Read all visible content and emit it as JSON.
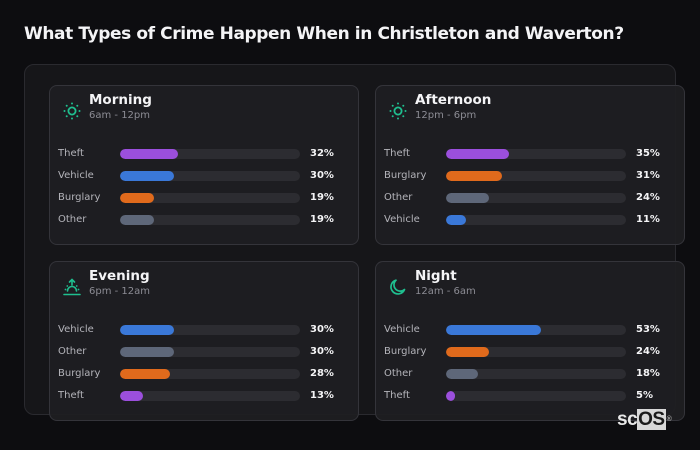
{
  "header": {
    "title": "What Types of Crime Happen When in Christleton and Waverton?"
  },
  "colors": {
    "accent_icon": "#1fbf8f",
    "Theft": "#9b4fdc",
    "Vehicle": "#3a78d8",
    "Burglary": "#e06a1c",
    "Other": "#5e6779",
    "track": "#2c2c31"
  },
  "cards": [
    {
      "title": "Morning",
      "subtitle": "6am - 12pm",
      "icon": "sun-icon",
      "rows": [
        {
          "label": "Theft",
          "value": 32,
          "pct": "32%"
        },
        {
          "label": "Vehicle",
          "value": 30,
          "pct": "30%"
        },
        {
          "label": "Burglary",
          "value": 19,
          "pct": "19%"
        },
        {
          "label": "Other",
          "value": 19,
          "pct": "19%"
        }
      ]
    },
    {
      "title": "Afternoon",
      "subtitle": "12pm - 6pm",
      "icon": "sun-icon",
      "rows": [
        {
          "label": "Theft",
          "value": 35,
          "pct": "35%"
        },
        {
          "label": "Burglary",
          "value": 31,
          "pct": "31%"
        },
        {
          "label": "Other",
          "value": 24,
          "pct": "24%"
        },
        {
          "label": "Vehicle",
          "value": 11,
          "pct": "11%"
        }
      ]
    },
    {
      "title": "Evening",
      "subtitle": "6pm - 12am",
      "icon": "sunset-icon",
      "rows": [
        {
          "label": "Vehicle",
          "value": 30,
          "pct": "30%"
        },
        {
          "label": "Other",
          "value": 30,
          "pct": "30%"
        },
        {
          "label": "Burglary",
          "value": 28,
          "pct": "28%"
        },
        {
          "label": "Theft",
          "value": 13,
          "pct": "13%"
        }
      ]
    },
    {
      "title": "Night",
      "subtitle": "12am - 6am",
      "icon": "moon-icon",
      "rows": [
        {
          "label": "Vehicle",
          "value": 53,
          "pct": "53%"
        },
        {
          "label": "Burglary",
          "value": 24,
          "pct": "24%"
        },
        {
          "label": "Other",
          "value": 18,
          "pct": "18%"
        },
        {
          "label": "Theft",
          "value": 5,
          "pct": "5%"
        }
      ]
    }
  ],
  "logo": {
    "text_plain": "sc",
    "text_box": "OS",
    "mark": "®"
  },
  "chart_data": [
    {
      "type": "bar",
      "orientation": "horizontal",
      "title": "Morning",
      "subtitle": "6am - 12pm",
      "categories": [
        "Theft",
        "Vehicle",
        "Burglary",
        "Other"
      ],
      "values": [
        32,
        30,
        19,
        19
      ],
      "unit": "%",
      "xlim": [
        0,
        100
      ]
    },
    {
      "type": "bar",
      "orientation": "horizontal",
      "title": "Afternoon",
      "subtitle": "12pm - 6pm",
      "categories": [
        "Theft",
        "Burglary",
        "Other",
        "Vehicle"
      ],
      "values": [
        35,
        31,
        24,
        11
      ],
      "unit": "%",
      "xlim": [
        0,
        100
      ]
    },
    {
      "type": "bar",
      "orientation": "horizontal",
      "title": "Evening",
      "subtitle": "6pm - 12am",
      "categories": [
        "Vehicle",
        "Other",
        "Burglary",
        "Theft"
      ],
      "values": [
        30,
        30,
        28,
        13
      ],
      "unit": "%",
      "xlim": [
        0,
        100
      ]
    },
    {
      "type": "bar",
      "orientation": "horizontal",
      "title": "Night",
      "subtitle": "12am - 6am",
      "categories": [
        "Vehicle",
        "Burglary",
        "Other",
        "Theft"
      ],
      "values": [
        53,
        24,
        18,
        5
      ],
      "unit": "%",
      "xlim": [
        0,
        100
      ]
    }
  ]
}
